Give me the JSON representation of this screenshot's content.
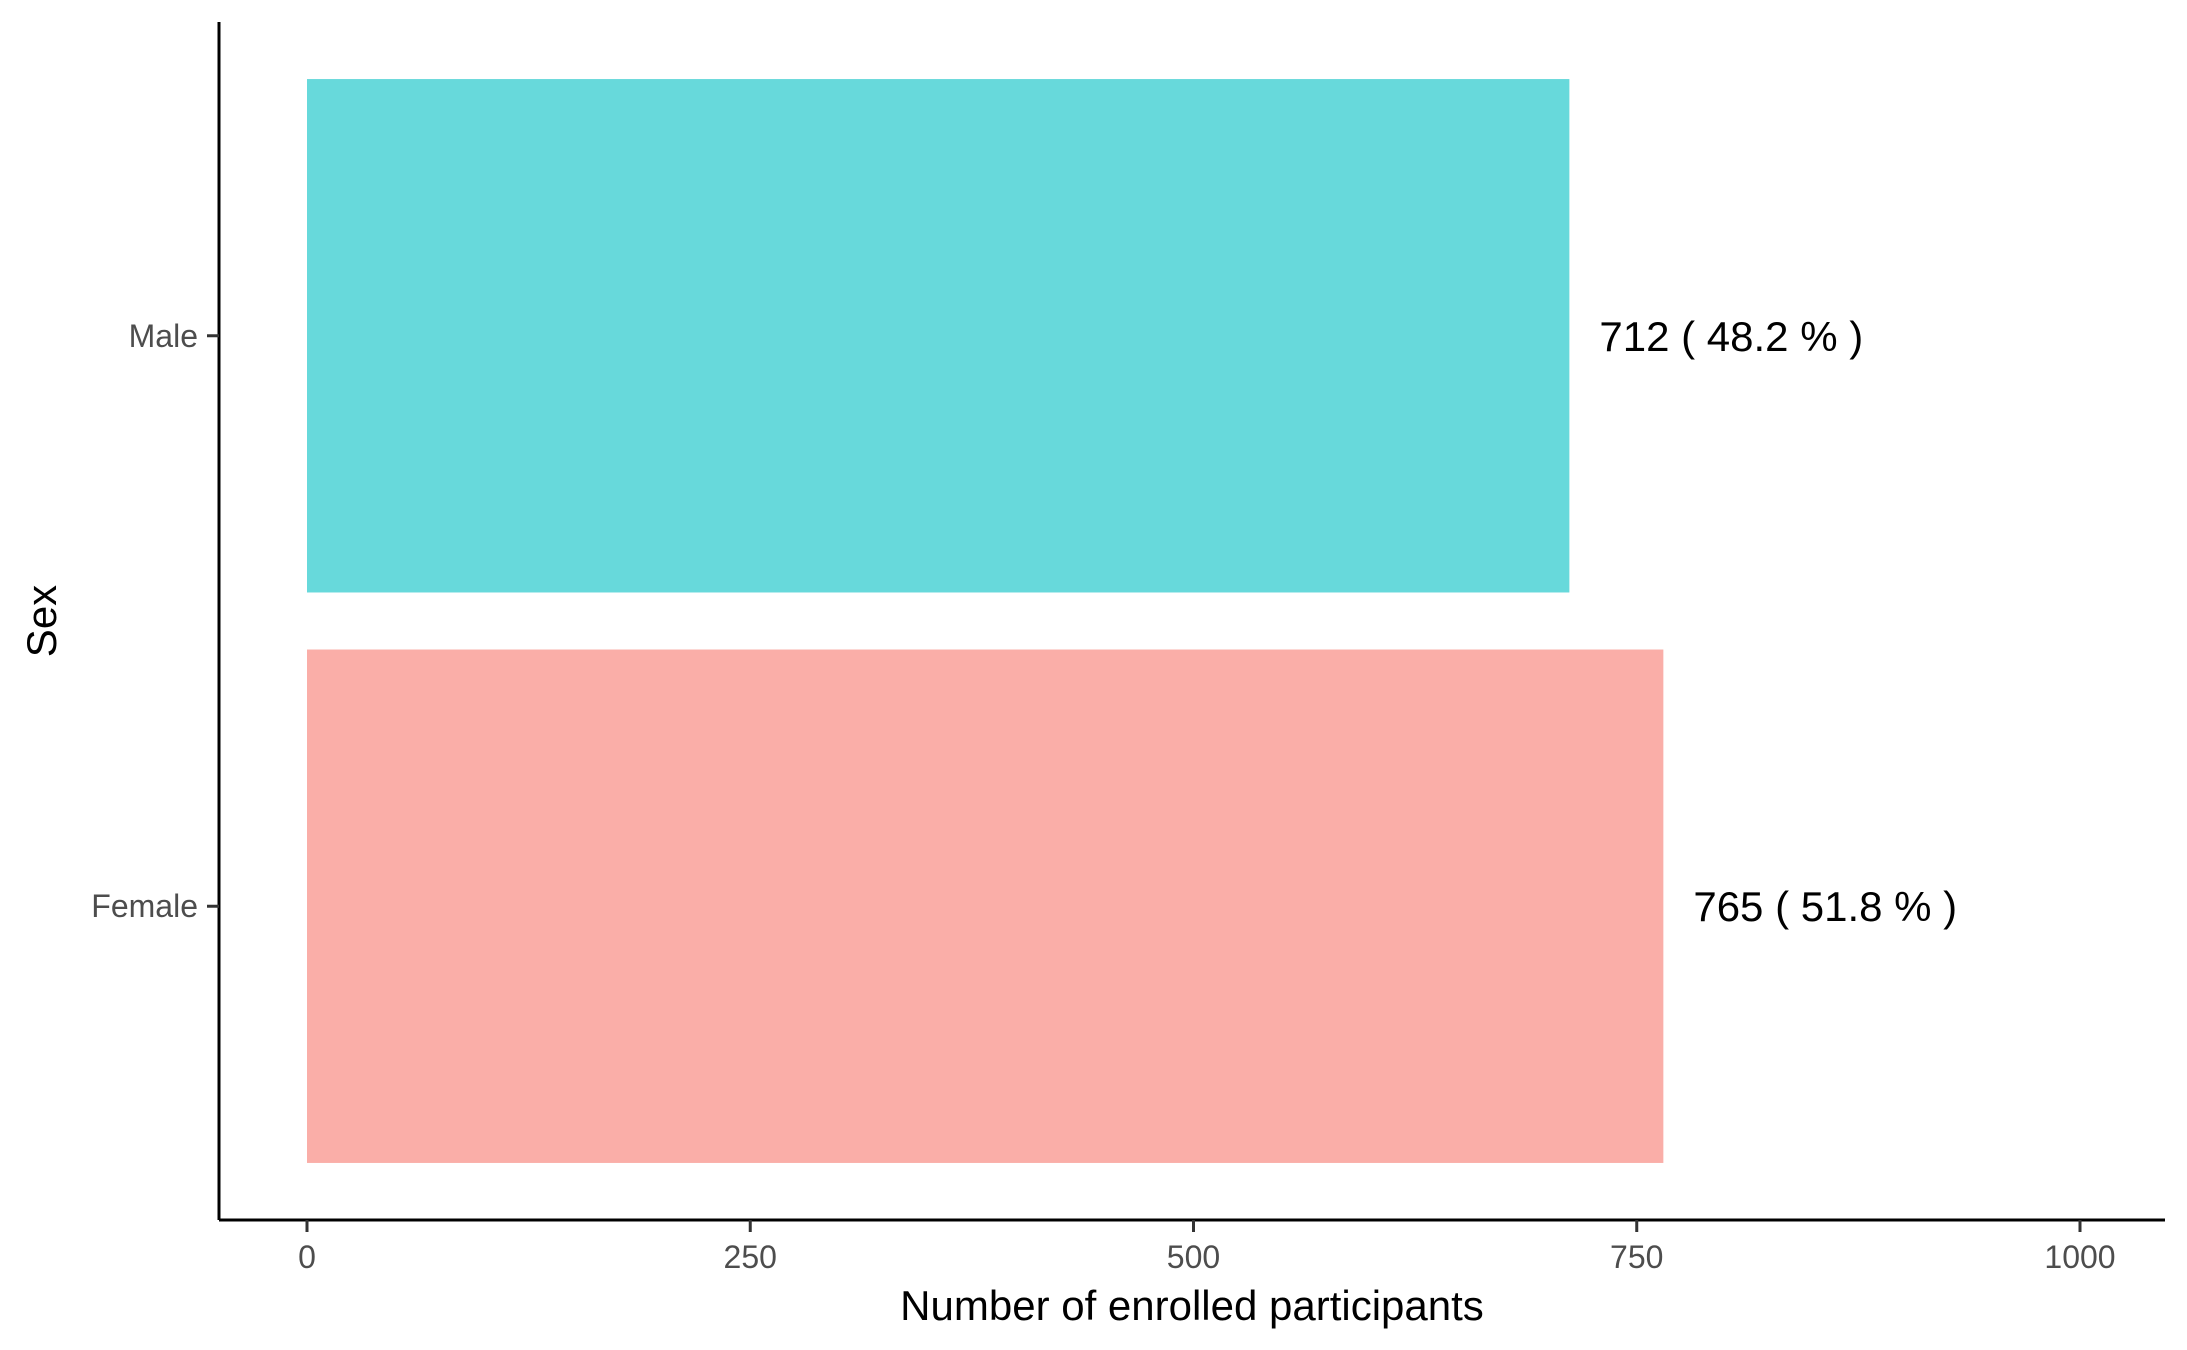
{
  "chart_data": {
    "type": "bar",
    "orientation": "horizontal",
    "title": "",
    "xlabel": "Number of enrolled participants",
    "ylabel": "Sex",
    "xlim": [
      0,
      1000
    ],
    "x_ticks": [
      0,
      250,
      500,
      750,
      1000
    ],
    "x_tick_labels": [
      "0",
      "250",
      "500",
      "750",
      "1000"
    ],
    "categories": [
      "Male",
      "Female"
    ],
    "values": [
      712,
      765
    ],
    "data_labels": [
      "712 ( 48.2 % )",
      "765 ( 51.8 % )"
    ],
    "colors": [
      "#67d9db",
      "#faaea8"
    ],
    "grid": false,
    "legend": "none"
  }
}
